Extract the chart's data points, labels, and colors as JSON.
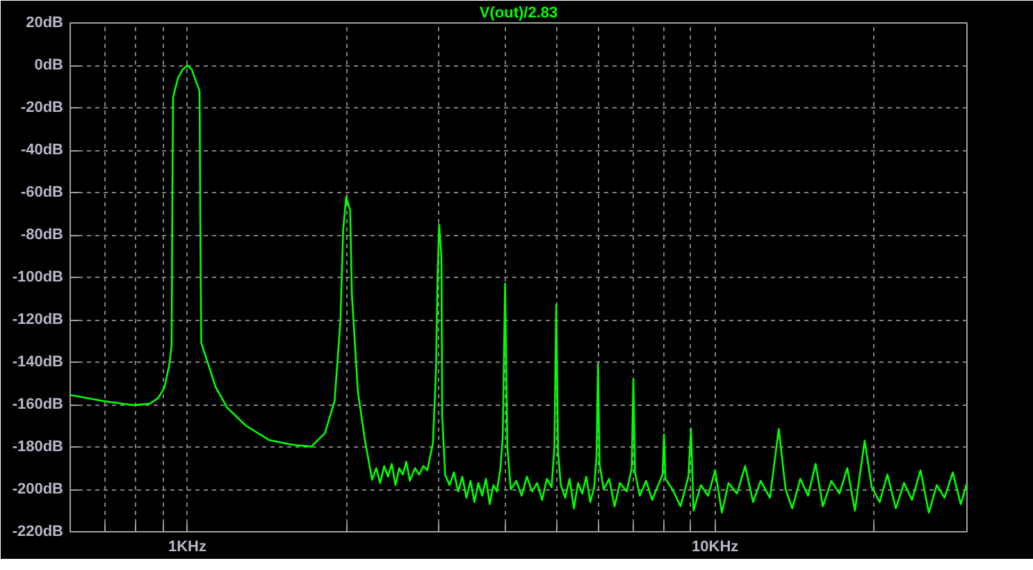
{
  "chart_data": {
    "type": "line",
    "title": "V(out)/2.83",
    "log": "x",
    "grid": true,
    "marker": "none",
    "line_style": "solid",
    "xlim": [
      0.6,
      30
    ],
    "ylim": [
      -220,
      20
    ],
    "xticks": [
      {
        "value": 0.7,
        "label": null
      },
      {
        "value": 0.8,
        "label": null
      },
      {
        "value": 0.9,
        "label": null
      },
      {
        "value": 1,
        "label": "1KHz"
      },
      {
        "value": 2,
        "label": null
      },
      {
        "value": 3,
        "label": null
      },
      {
        "value": 4,
        "label": null
      },
      {
        "value": 5,
        "label": null
      },
      {
        "value": 6,
        "label": null
      },
      {
        "value": 7,
        "label": null
      },
      {
        "value": 8,
        "label": null
      },
      {
        "value": 9,
        "label": null
      },
      {
        "value": 10,
        "label": "10KHz"
      },
      {
        "value": 20,
        "label": null
      }
    ],
    "yticks": [
      {
        "value": 20,
        "label": "20dB"
      },
      {
        "value": 0,
        "label": "0dB"
      },
      {
        "value": -20,
        "label": "-20dB"
      },
      {
        "value": -40,
        "label": "-40dB"
      },
      {
        "value": -60,
        "label": "-60dB"
      },
      {
        "value": -80,
        "label": "-80dB"
      },
      {
        "value": -100,
        "label": "-100dB"
      },
      {
        "value": -120,
        "label": "-120dB"
      },
      {
        "value": -140,
        "label": "-140dB"
      },
      {
        "value": -160,
        "label": "-160dB"
      },
      {
        "value": -180,
        "label": "-180dB"
      },
      {
        "value": -200,
        "label": "-200dB"
      },
      {
        "value": -220,
        "label": "-220dB"
      }
    ],
    "x": [
      0.6,
      0.7,
      0.794,
      0.85,
      0.88,
      0.905,
      0.925,
      0.934,
      0.937,
      0.94,
      0.96,
      0.98,
      1,
      1.02,
      1.04,
      1.055,
      1.06,
      1.063,
      1.132,
      1.191,
      1.292,
      1.428,
      1.584,
      1.718,
      1.823,
      1.901,
      1.95,
      1.974,
      2,
      2.035,
      2.05,
      2.105,
      2.171,
      2.239,
      2.28,
      2.32,
      2.36,
      2.4,
      2.44,
      2.48,
      2.52,
      2.56,
      2.6,
      2.64,
      2.7,
      2.75,
      2.8,
      2.85,
      2.92,
      2.96,
      2.98,
      3,
      3.03,
      3.04,
      3.08,
      3.14,
      3.2,
      3.26,
      3.32,
      3.38,
      3.44,
      3.5,
      3.56,
      3.62,
      3.68,
      3.74,
      3.8,
      3.86,
      3.92,
      3.96,
      4,
      4.04,
      4.1,
      4.2,
      4.3,
      4.4,
      4.5,
      4.6,
      4.7,
      4.8,
      4.9,
      4.96,
      5,
      5.04,
      5.1,
      5.2,
      5.3,
      5.4,
      5.5,
      5.6,
      5.7,
      5.8,
      5.9,
      5.96,
      6,
      6.04,
      6.15,
      6.3,
      6.45,
      6.6,
      6.8,
      6.95,
      7,
      7.05,
      7.2,
      7.4,
      7.6,
      7.8,
      7.95,
      8,
      8.05,
      8.3,
      8.6,
      8.9,
      9,
      9.1,
      9.4,
      9.7,
      10,
      10.3,
      10.6,
      11,
      11.4,
      11.8,
      12.2,
      12.7,
      13.2,
      13.6,
      14,
      14.5,
      15,
      15.5,
      16,
      16.6,
      17.2,
      17.8,
      18.4,
      19.2,
      19.8,
      20.5,
      21.2,
      22,
      22.8,
      23.6,
      24.5,
      25.4,
      26.3,
      27.2,
      28.2,
      29.2,
      30
    ],
    "series": [
      {
        "color": "#00ff00",
        "values": [
          -155.5,
          -158.5,
          -160.3,
          -159.5,
          -157,
          -152,
          -141,
          -132,
          -60,
          -15,
          -6,
          -2,
          0,
          -2,
          -8,
          -12,
          -100,
          -131,
          -151.8,
          -161.6,
          -170,
          -176.7,
          -179,
          -179.8,
          -173.5,
          -158.3,
          -121,
          -77.5,
          -62,
          -68.5,
          -108,
          -154,
          -177,
          -195.5,
          -190,
          -197,
          -189,
          -194,
          -188,
          -198,
          -190,
          -193,
          -187,
          -196,
          -190,
          -193,
          -189,
          -191,
          -178,
          -143,
          -99,
          -75,
          -90.6,
          -165,
          -193.3,
          -198,
          -192,
          -201,
          -194,
          -204,
          -196,
          -206,
          -197,
          -203,
          -195,
          -207,
          -198,
          -201,
          -190,
          -175,
          -103,
          -180,
          -200,
          -196,
          -203,
          -194,
          -201,
          -197,
          -205,
          -195,
          -199,
          -180,
          -113,
          -182,
          -198,
          -204,
          -195,
          -209,
          -197,
          -202,
          -194,
          -206,
          -199,
          -185,
          -141,
          -188,
          -200,
          -195,
          -208,
          -197,
          -201,
          -190,
          -148,
          -192,
          -203,
          -196,
          -205,
          -198,
          -193,
          -174,
          -195,
          -200,
          -208,
          -194,
          -171.5,
          -210,
          -198,
          -203,
          -191,
          -211,
          -197,
          -202,
          -189,
          -206,
          -196,
          -204,
          -171.5,
          -200,
          -209,
          -195,
          -203,
          -188,
          -208,
          -196,
          -202,
          -190,
          -210,
          -177,
          -199,
          -206,
          -193,
          -209,
          -197,
          -205,
          -191,
          -211,
          -198,
          -204,
          -192,
          -207,
          -197
        ]
      }
    ]
  }
}
